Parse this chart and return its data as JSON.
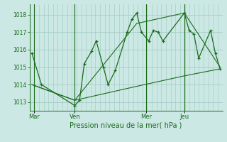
{
  "xlabel": "Pression niveau de la mer( hPa )",
  "background_color": "#cce8e4",
  "grid_color": "#9dc8c0",
  "line_color": "#1a6b1a",
  "ylim": [
    1012.5,
    1018.6
  ],
  "yticks": [
    1013,
    1014,
    1015,
    1016,
    1017,
    1018
  ],
  "day_labels": [
    "Mar",
    "Ven",
    "Mer",
    "Jeu"
  ],
  "day_positions": [
    0.5,
    9,
    24,
    32
  ],
  "xlim": [
    -0.5,
    40
  ],
  "line1_x": [
    0,
    2,
    9,
    10,
    11,
    12.5,
    13.5,
    15,
    16,
    17.5,
    20,
    21,
    22,
    23,
    24.5,
    25.5,
    26.5,
    27.5,
    32,
    33,
    34,
    35,
    37.5,
    38.5,
    39.5
  ],
  "line1_y": [
    1015.8,
    1014.0,
    1012.8,
    1013.1,
    1015.2,
    1015.9,
    1016.5,
    1015.0,
    1014.0,
    1014.8,
    1017.0,
    1017.75,
    1018.1,
    1017.0,
    1016.5,
    1017.1,
    1017.0,
    1016.5,
    1018.1,
    1017.1,
    1016.9,
    1015.5,
    1017.1,
    1015.8,
    1014.9
  ],
  "line2_x": [
    0,
    9,
    22,
    32,
    39.5
  ],
  "line2_y": [
    1014.0,
    1013.1,
    1017.5,
    1018.1,
    1015.0
  ],
  "line3_x": [
    0,
    9,
    22,
    32,
    39.5
  ],
  "line3_y": [
    1014.0,
    1013.1,
    1013.9,
    1014.5,
    1014.9
  ],
  "figsize": [
    3.2,
    2.0
  ],
  "dpi": 100
}
